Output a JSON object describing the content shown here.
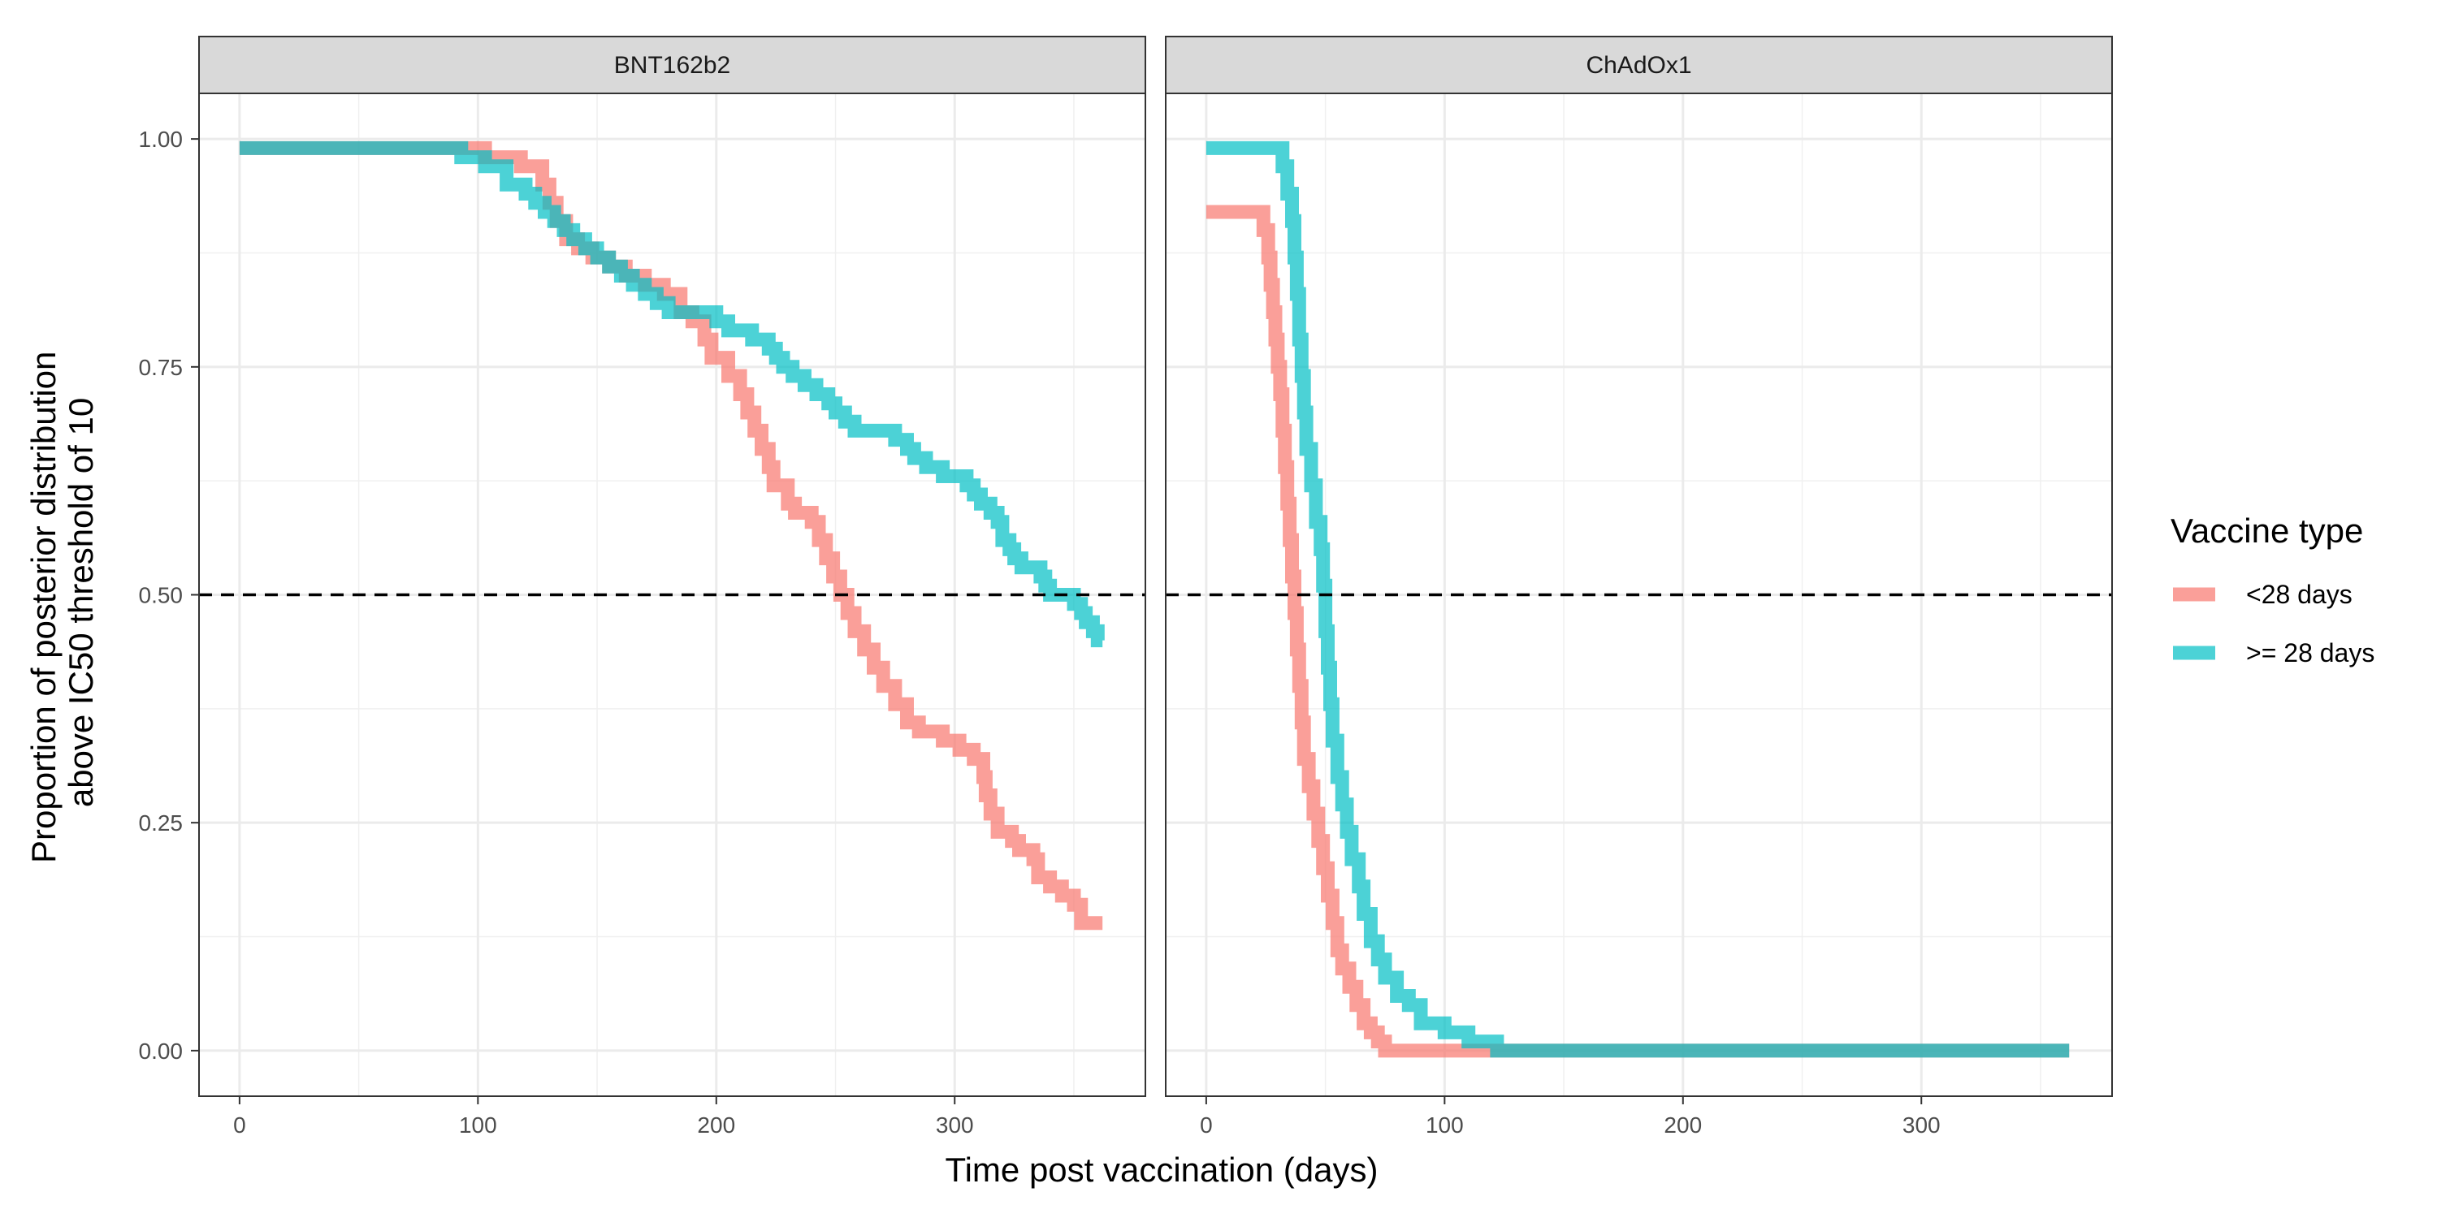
{
  "chart_data": {
    "type": "line",
    "xlabel": "Time post vaccination (days)",
    "ylabel_lines": [
      "Proportion of posterior distribution",
      "above IC50 threshold of 10"
    ],
    "xlim": [
      -17,
      380
    ],
    "ylim": [
      -0.05,
      1.05
    ],
    "x_ticks": [
      0,
      100,
      200,
      300
    ],
    "x_tick_labels": [
      "0",
      "100",
      "200",
      "300"
    ],
    "y_ticks": [
      0,
      0.25,
      0.5,
      0.75,
      1
    ],
    "y_tick_labels": [
      "0.00",
      "0.25",
      "0.50",
      "0.75",
      "1.00"
    ],
    "reference_line": {
      "y": 0.5,
      "style": "dashed",
      "color": "#000000"
    },
    "grid": true,
    "legend": {
      "title": "Vaccine type",
      "position": "right",
      "entries": [
        {
          "label": "<28 days",
          "color": "#F8766D"
        },
        {
          "label": ">= 28 days",
          "color": "#00BFC4"
        }
      ]
    },
    "panels": [
      {
        "title": "BNT162b2",
        "series": [
          {
            "name": "<28 days",
            "color": "#F8766D",
            "points": [
              [
                0,
                0.99
              ],
              [
                100,
                0.99
              ],
              [
                103,
                0.98
              ],
              [
                115,
                0.98
              ],
              [
                118,
                0.97
              ],
              [
                125,
                0.97
              ],
              [
                127,
                0.95
              ],
              [
                130,
                0.93
              ],
              [
                133,
                0.91
              ],
              [
                137,
                0.89
              ],
              [
                142,
                0.88
              ],
              [
                148,
                0.87
              ],
              [
                155,
                0.86
              ],
              [
                162,
                0.85
              ],
              [
                170,
                0.84
              ],
              [
                178,
                0.83
              ],
              [
                185,
                0.81
              ],
              [
                190,
                0.8
              ],
              [
                195,
                0.78
              ],
              [
                198,
                0.76
              ],
              [
                205,
                0.74
              ],
              [
                210,
                0.72
              ],
              [
                213,
                0.7
              ],
              [
                216,
                0.68
              ],
              [
                219,
                0.66
              ],
              [
                222,
                0.64
              ],
              [
                224,
                0.62
              ],
              [
                230,
                0.6
              ],
              [
                233,
                0.59
              ],
              [
                240,
                0.58
              ],
              [
                243,
                0.56
              ],
              [
                246,
                0.54
              ],
              [
                249,
                0.52
              ],
              [
                252,
                0.5
              ],
              [
                255,
                0.48
              ],
              [
                258,
                0.46
              ],
              [
                262,
                0.44
              ],
              [
                266,
                0.42
              ],
              [
                270,
                0.4
              ],
              [
                275,
                0.38
              ],
              [
                280,
                0.36
              ],
              [
                285,
                0.35
              ],
              [
                295,
                0.34
              ],
              [
                302,
                0.33
              ],
              [
                308,
                0.32
              ],
              [
                312,
                0.3
              ],
              [
                313,
                0.28
              ],
              [
                315,
                0.26
              ],
              [
                318,
                0.24
              ],
              [
                324,
                0.23
              ],
              [
                327,
                0.22
              ],
              [
                333,
                0.21
              ],
              [
                335,
                0.19
              ],
              [
                340,
                0.18
              ],
              [
                345,
                0.17
              ],
              [
                350,
                0.16
              ],
              [
                353,
                0.14
              ],
              [
                362,
                0.14
              ]
            ]
          },
          {
            "name": ">= 28 days",
            "color": "#00BFC4",
            "points": [
              [
                0,
                0.99
              ],
              [
                90,
                0.99
              ],
              [
                93,
                0.98
              ],
              [
                100,
                0.98
              ],
              [
                103,
                0.97
              ],
              [
                108,
                0.97
              ],
              [
                112,
                0.95
              ],
              [
                120,
                0.94
              ],
              [
                124,
                0.93
              ],
              [
                128,
                0.92
              ],
              [
                132,
                0.91
              ],
              [
                136,
                0.9
              ],
              [
                140,
                0.89
              ],
              [
                145,
                0.88
              ],
              [
                150,
                0.87
              ],
              [
                155,
                0.86
              ],
              [
                160,
                0.85
              ],
              [
                165,
                0.84
              ],
              [
                170,
                0.83
              ],
              [
                175,
                0.82
              ],
              [
                180,
                0.81
              ],
              [
                195,
                0.81
              ],
              [
                200,
                0.8
              ],
              [
                205,
                0.79
              ],
              [
                215,
                0.78
              ],
              [
                222,
                0.77
              ],
              [
                225,
                0.76
              ],
              [
                228,
                0.75
              ],
              [
                232,
                0.74
              ],
              [
                237,
                0.73
              ],
              [
                242,
                0.72
              ],
              [
                247,
                0.71
              ],
              [
                250,
                0.7
              ],
              [
                254,
                0.69
              ],
              [
                258,
                0.68
              ],
              [
                268,
                0.68
              ],
              [
                275,
                0.67
              ],
              [
                280,
                0.66
              ],
              [
                283,
                0.65
              ],
              [
                288,
                0.64
              ],
              [
                295,
                0.63
              ],
              [
                302,
                0.63
              ],
              [
                305,
                0.62
              ],
              [
                308,
                0.61
              ],
              [
                311,
                0.6
              ],
              [
                315,
                0.59
              ],
              [
                318,
                0.58
              ],
              [
                320,
                0.56
              ],
              [
                323,
                0.55
              ],
              [
                325,
                0.54
              ],
              [
                328,
                0.53
              ],
              [
                334,
                0.53
              ],
              [
                336,
                0.52
              ],
              [
                338,
                0.51
              ],
              [
                340,
                0.5
              ],
              [
                348,
                0.5
              ],
              [
                350,
                0.49
              ],
              [
                353,
                0.48
              ],
              [
                355,
                0.47
              ],
              [
                358,
                0.46
              ],
              [
                360,
                0.45
              ],
              [
                362,
                0.45
              ]
            ]
          }
        ]
      },
      {
        "title": "ChAdOx1",
        "series": [
          {
            "name": "<28 days",
            "color": "#F8766D",
            "points": [
              [
                0,
                0.92
              ],
              [
                22,
                0.92
              ],
              [
                24,
                0.9
              ],
              [
                26,
                0.87
              ],
              [
                27,
                0.84
              ],
              [
                28,
                0.81
              ],
              [
                29,
                0.78
              ],
              [
                30,
                0.75
              ],
              [
                31,
                0.72
              ],
              [
                32,
                0.68
              ],
              [
                33,
                0.64
              ],
              [
                34,
                0.6
              ],
              [
                35,
                0.56
              ],
              [
                36,
                0.52
              ],
              [
                37,
                0.48
              ],
              [
                38,
                0.44
              ],
              [
                39,
                0.4
              ],
              [
                40,
                0.36
              ],
              [
                41,
                0.32
              ],
              [
                43,
                0.29
              ],
              [
                45,
                0.26
              ],
              [
                47,
                0.23
              ],
              [
                49,
                0.2
              ],
              [
                51,
                0.17
              ],
              [
                53,
                0.14
              ],
              [
                55,
                0.11
              ],
              [
                57,
                0.09
              ],
              [
                60,
                0.07
              ],
              [
                63,
                0.05
              ],
              [
                66,
                0.03
              ],
              [
                69,
                0.02
              ],
              [
                72,
                0.01
              ],
              [
                75,
                0.0
              ],
              [
                362,
                0.0
              ]
            ]
          },
          {
            "name": ">= 28 days",
            "color": "#00BFC4",
            "points": [
              [
                0,
                0.99
              ],
              [
                30,
                0.99
              ],
              [
                32,
                0.97
              ],
              [
                34,
                0.94
              ],
              [
                36,
                0.91
              ],
              [
                37,
                0.87
              ],
              [
                38,
                0.83
              ],
              [
                39,
                0.78
              ],
              [
                40,
                0.74
              ],
              [
                41,
                0.7
              ],
              [
                42,
                0.66
              ],
              [
                44,
                0.62
              ],
              [
                46,
                0.58
              ],
              [
                48,
                0.55
              ],
              [
                49,
                0.51
              ],
              [
                50,
                0.46
              ],
              [
                51,
                0.42
              ],
              [
                52,
                0.38
              ],
              [
                53,
                0.34
              ],
              [
                55,
                0.3
              ],
              [
                57,
                0.27
              ],
              [
                59,
                0.24
              ],
              [
                61,
                0.21
              ],
              [
                64,
                0.18
              ],
              [
                66,
                0.15
              ],
              [
                69,
                0.12
              ],
              [
                72,
                0.1
              ],
              [
                75,
                0.08
              ],
              [
                80,
                0.06
              ],
              [
                85,
                0.05
              ],
              [
                90,
                0.03
              ],
              [
                100,
                0.02
              ],
              [
                110,
                0.01
              ],
              [
                122,
                0.0
              ],
              [
                362,
                0.0
              ]
            ]
          }
        ]
      }
    ]
  }
}
